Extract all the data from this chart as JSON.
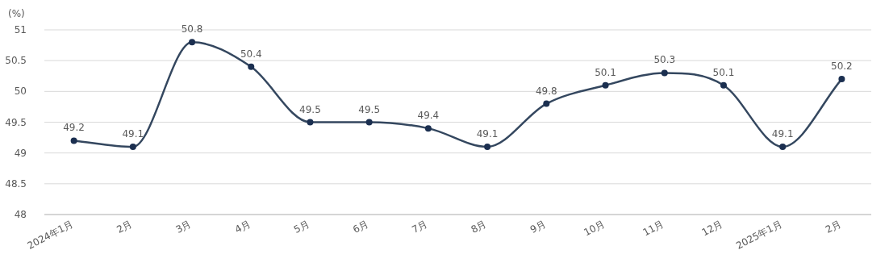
{
  "chart_data": {
    "type": "line",
    "ylabel": "(%)",
    "categories": [
      "2024年1月",
      "2月",
      "3月",
      "4月",
      "5月",
      "6月",
      "7月",
      "8月",
      "9月",
      "10月",
      "11月",
      "12月",
      "2025年1月",
      "2月"
    ],
    "series": [
      {
        "color": "#34475f",
        "values": [
          49.2,
          49.1,
          50.8,
          50.4,
          49.5,
          49.5,
          49.4,
          49.1,
          49.8,
          50.1,
          50.3,
          50.1,
          49.1,
          50.2
        ]
      }
    ],
    "ylim": [
      48,
      51
    ],
    "yticks": [
      48,
      48.5,
      49,
      49.5,
      50,
      50.5,
      51
    ],
    "grid": "y",
    "data_labels": true,
    "marker": "circle"
  }
}
